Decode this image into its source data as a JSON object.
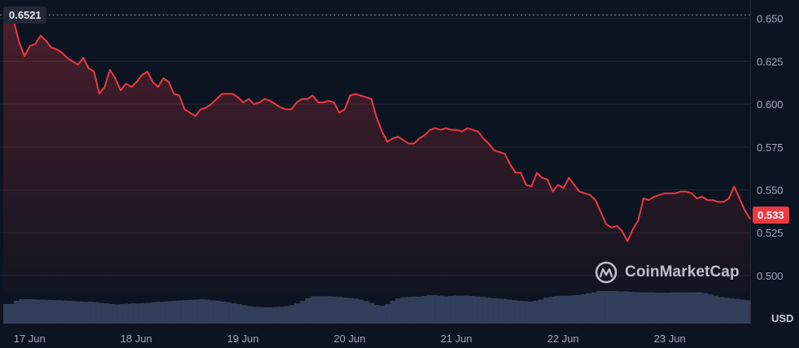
{
  "chart_data": {
    "type": "area",
    "currency": "USD",
    "reference_label": "0.6521",
    "last_price_label": "0.533",
    "ylim": [
      0.49,
      0.656
    ],
    "y_ticks": [
      "0.650",
      "0.625",
      "0.600",
      "0.575",
      "0.550",
      "0.525",
      "0.500"
    ],
    "y_tick_values": [
      0.65,
      0.625,
      0.6,
      0.575,
      0.55,
      0.525,
      0.5
    ],
    "x_ticks": [
      "17 Jun",
      "18 Jun",
      "19 Jun",
      "20 Jun",
      "21 Jun",
      "22 Jun",
      "23 Jun"
    ],
    "x_tick_values": [
      0.25,
      1.25,
      2.25,
      3.25,
      4.25,
      5.25,
      6.25
    ],
    "x_range": [
      0,
      7.0
    ],
    "price_x": [
      0.0,
      0.05,
      0.1,
      0.15,
      0.2,
      0.25,
      0.3,
      0.35,
      0.4,
      0.45,
      0.5,
      0.55,
      0.6,
      0.65,
      0.7,
      0.75,
      0.8,
      0.85,
      0.9,
      0.95,
      1.0,
      1.05,
      1.1,
      1.15,
      1.2,
      1.25,
      1.3,
      1.35,
      1.4,
      1.45,
      1.5,
      1.55,
      1.6,
      1.65,
      1.7,
      1.75,
      1.8,
      1.85,
      1.9,
      1.95,
      2.0,
      2.05,
      2.1,
      2.15,
      2.2,
      2.25,
      2.3,
      2.35,
      2.4,
      2.45,
      2.5,
      2.55,
      2.6,
      2.65,
      2.7,
      2.75,
      2.8,
      2.85,
      2.9,
      2.95,
      3.0,
      3.05,
      3.1,
      3.15,
      3.2,
      3.25,
      3.3,
      3.35,
      3.4,
      3.45,
      3.5,
      3.55,
      3.6,
      3.65,
      3.7,
      3.75,
      3.8,
      3.85,
      3.9,
      3.95,
      4.0,
      4.05,
      4.1,
      4.15,
      4.2,
      4.25,
      4.3,
      4.35,
      4.4,
      4.45,
      4.5,
      4.55,
      4.6,
      4.65,
      4.7,
      4.75,
      4.8,
      4.85,
      4.9,
      4.95,
      5.0,
      5.05,
      5.1,
      5.15,
      5.2,
      5.25,
      5.3,
      5.35,
      5.4,
      5.45,
      5.5,
      5.55,
      5.6,
      5.65,
      5.7,
      5.75,
      5.8,
      5.85,
      5.9,
      5.95,
      6.0,
      6.05,
      6.1,
      6.15,
      6.2,
      6.25,
      6.3,
      6.35,
      6.4,
      6.45,
      6.5,
      6.55,
      6.6,
      6.65,
      6.7,
      6.75,
      6.8,
      6.85,
      6.9,
      6.95,
      7.0
    ],
    "price_y": [
      0.652,
      0.651,
      0.648,
      0.636,
      0.628,
      0.634,
      0.635,
      0.64,
      0.637,
      0.633,
      0.632,
      0.63,
      0.627,
      0.625,
      0.623,
      0.627,
      0.621,
      0.619,
      0.606,
      0.61,
      0.62,
      0.615,
      0.608,
      0.612,
      0.61,
      0.613,
      0.617,
      0.619,
      0.613,
      0.61,
      0.615,
      0.613,
      0.606,
      0.605,
      0.597,
      0.595,
      0.593,
      0.597,
      0.598,
      0.6,
      0.603,
      0.606,
      0.606,
      0.606,
      0.604,
      0.601,
      0.603,
      0.6,
      0.601,
      0.603,
      0.602,
      0.6,
      0.598,
      0.597,
      0.597,
      0.601,
      0.603,
      0.603,
      0.605,
      0.601,
      0.601,
      0.602,
      0.601,
      0.595,
      0.597,
      0.605,
      0.606,
      0.605,
      0.604,
      0.603,
      0.592,
      0.584,
      0.578,
      0.58,
      0.581,
      0.579,
      0.577,
      0.577,
      0.58,
      0.582,
      0.585,
      0.586,
      0.585,
      0.586,
      0.585,
      0.585,
      0.584,
      0.586,
      0.585,
      0.584,
      0.58,
      0.577,
      0.573,
      0.572,
      0.571,
      0.565,
      0.56,
      0.56,
      0.553,
      0.552,
      0.56,
      0.557,
      0.556,
      0.549,
      0.553,
      0.551,
      0.557,
      0.553,
      0.549,
      0.548,
      0.547,
      0.544,
      0.537,
      0.53,
      0.528,
      0.529,
      0.526,
      0.52,
      0.527,
      0.532,
      0.545,
      0.544,
      0.546,
      0.547,
      0.548,
      0.548,
      0.548,
      0.549,
      0.549,
      0.548,
      0.545,
      0.546,
      0.544,
      0.544,
      0.543,
      0.543,
      0.545,
      0.552,
      0.545,
      0.538,
      0.533
    ],
    "volume": [
      0.6,
      0.6,
      0.7,
      0.75,
      0.75,
      0.75,
      0.74,
      0.74,
      0.73,
      0.72,
      0.72,
      0.71,
      0.7,
      0.69,
      0.68,
      0.67,
      0.67,
      0.66,
      0.64,
      0.62,
      0.6,
      0.59,
      0.6,
      0.61,
      0.62,
      0.62,
      0.63,
      0.64,
      0.66,
      0.67,
      0.68,
      0.69,
      0.7,
      0.71,
      0.72,
      0.73,
      0.74,
      0.75,
      0.74,
      0.72,
      0.7,
      0.68,
      0.66,
      0.63,
      0.6,
      0.57,
      0.54,
      0.52,
      0.51,
      0.5,
      0.5,
      0.51,
      0.52,
      0.54,
      0.57,
      0.62,
      0.7,
      0.78,
      0.84,
      0.84,
      0.84,
      0.84,
      0.83,
      0.82,
      0.8,
      0.79,
      0.77,
      0.74,
      0.7,
      0.64,
      0.57,
      0.55,
      0.6,
      0.7,
      0.77,
      0.81,
      0.82,
      0.83,
      0.83,
      0.85,
      0.88,
      0.88,
      0.86,
      0.84,
      0.85,
      0.86,
      0.86,
      0.86,
      0.85,
      0.84,
      0.82,
      0.8,
      0.78,
      0.77,
      0.76,
      0.74,
      0.72,
      0.7,
      0.69,
      0.68,
      0.7,
      0.74,
      0.8,
      0.83,
      0.85,
      0.86,
      0.86,
      0.87,
      0.88,
      0.9,
      0.93,
      0.96,
      1.0,
      1.0,
      1.0,
      1.0,
      0.99,
      0.99,
      0.98,
      0.97,
      0.96,
      0.96,
      0.96,
      0.95,
      0.95,
      0.95,
      0.96,
      0.96,
      0.96,
      0.96,
      0.96,
      0.96,
      0.94,
      0.9,
      0.86,
      0.82,
      0.8,
      0.78,
      0.76,
      0.74,
      0.72
    ],
    "grid": true,
    "colors": {
      "line": "#ea3943",
      "background": "#0d1421",
      "grid": "#222531",
      "volume": "#3a4563",
      "ref_line": "#8a8f9c"
    }
  },
  "watermark": {
    "brand": "CoinMarketCap",
    "icon": "coinmarketcap-logo-icon"
  }
}
